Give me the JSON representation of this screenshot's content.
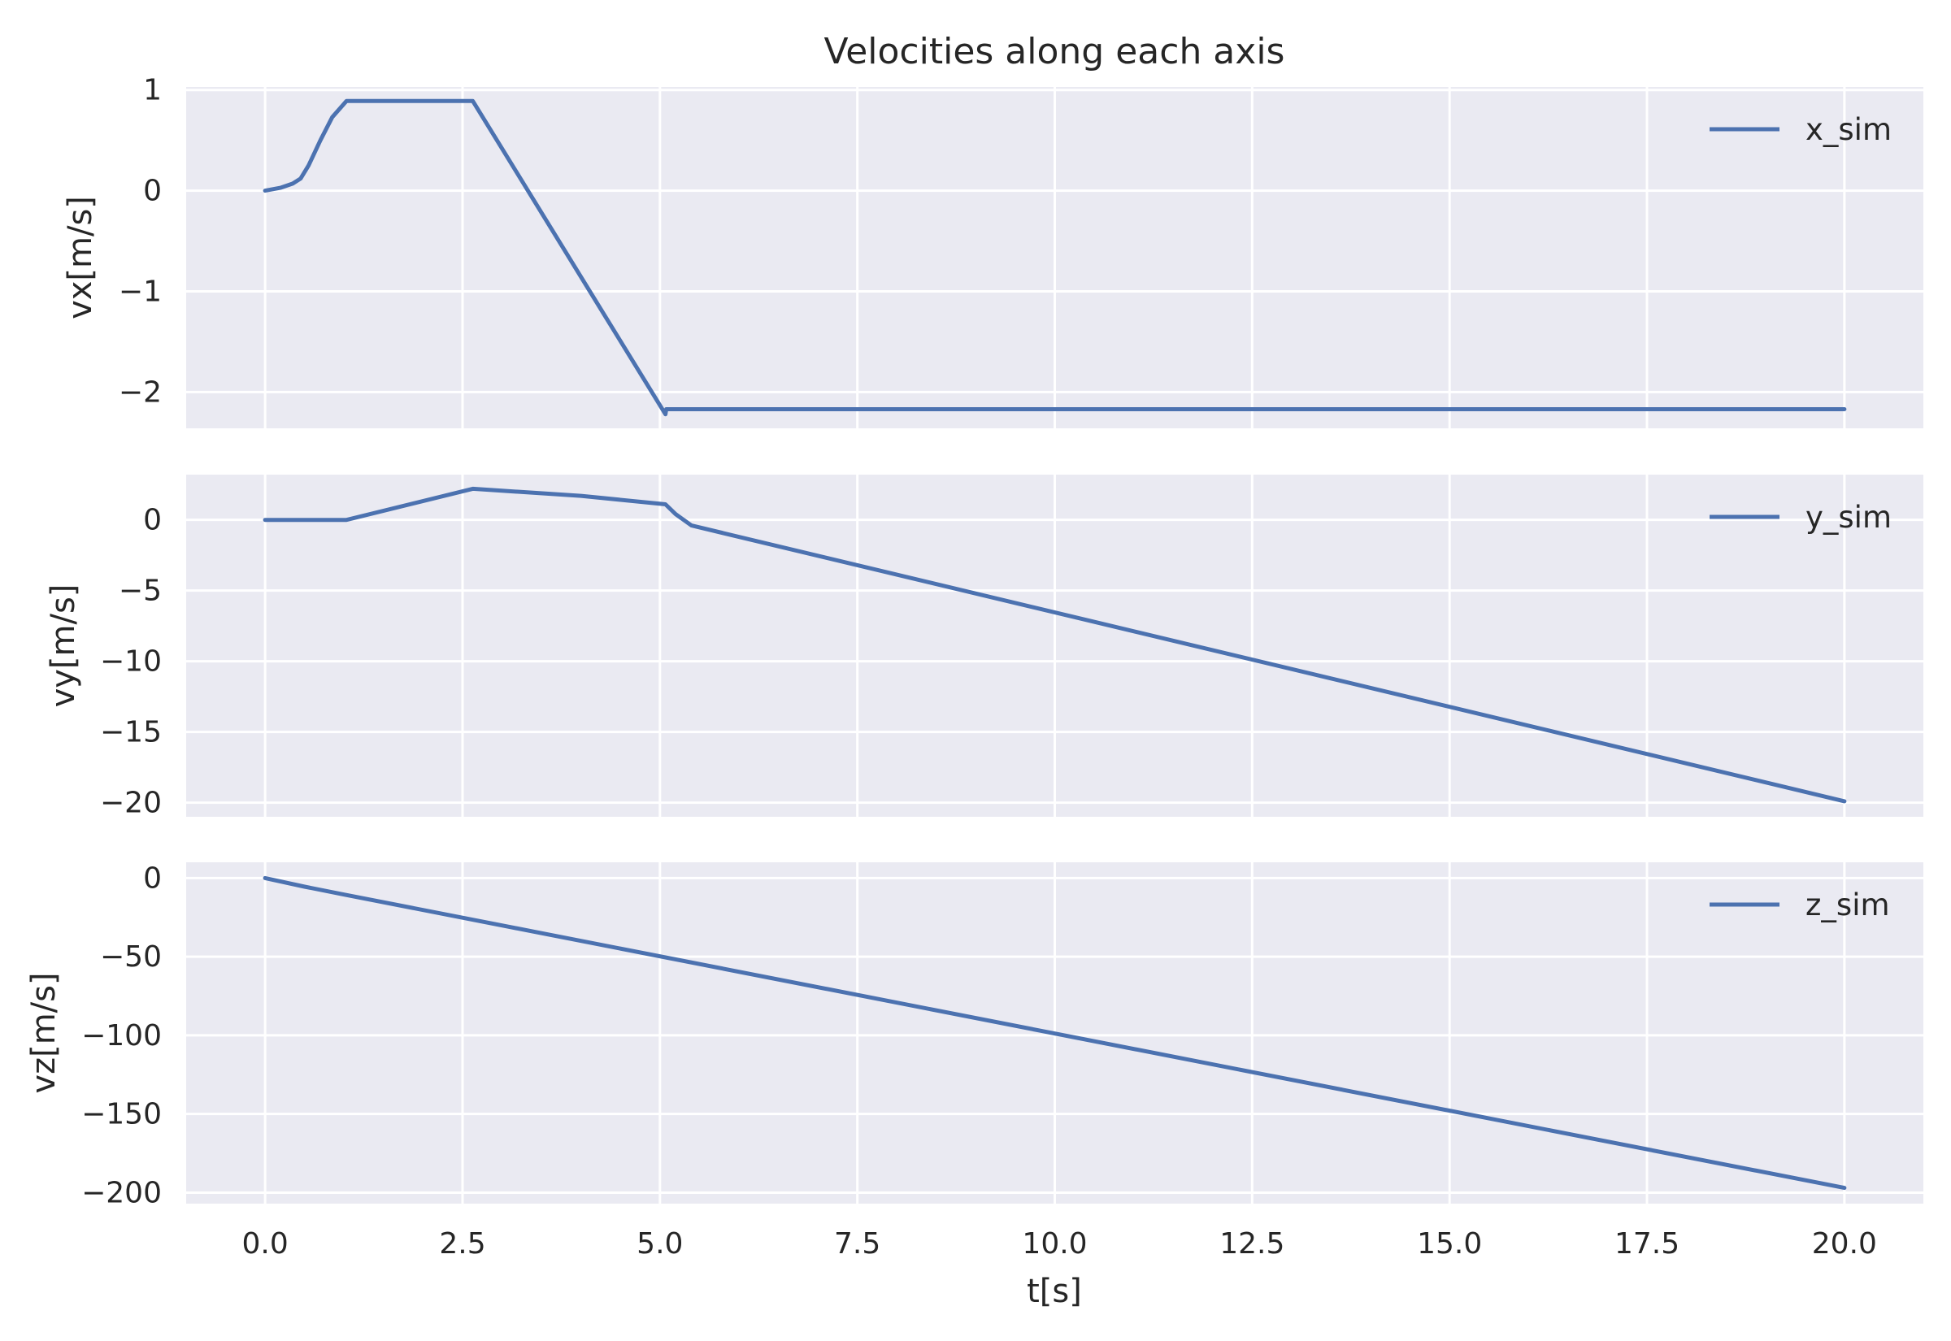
{
  "chart_data": {
    "type": "line",
    "title": "Velocities along each axis",
    "xlabel": "t[s]",
    "xlim": [
      -1.0,
      21.0
    ],
    "xticks": [
      0.0,
      2.5,
      5.0,
      7.5,
      10.0,
      12.5,
      15.0,
      17.5,
      20.0
    ],
    "xtick_labels": [
      "0.0",
      "2.5",
      "5.0",
      "7.5",
      "10.0",
      "12.5",
      "15.0",
      "17.5",
      "20.0"
    ],
    "line_color": "#4c72b0",
    "background_color": "#eaeaf2",
    "grid": true,
    "legend_position": "upper right",
    "subplots": [
      {
        "ylabel": "vx[m/s]",
        "ylim": [
          -2.36,
          1.03
        ],
        "yticks": [
          1,
          0,
          -1,
          -2
        ],
        "ytick_labels": [
          "1",
          "0",
          "−1",
          "−2"
        ],
        "series": [
          {
            "name": "x_sim",
            "x": [
              0.0,
              0.2,
              0.35,
              0.45,
              0.55,
              0.7,
              0.85,
              1.03,
              2.63,
              5.07,
              5.08,
              20.0
            ],
            "y": [
              0.0,
              0.03,
              0.07,
              0.12,
              0.25,
              0.5,
              0.73,
              0.89,
              0.89,
              -2.22,
              -2.17,
              -2.17
            ]
          }
        ]
      },
      {
        "ylabel": "vy[m/s]",
        "ylim": [
          -21.0,
          3.2
        ],
        "yticks": [
          0,
          -5,
          -10,
          -15,
          -20
        ],
        "ytick_labels": [
          "0",
          "−5",
          "−10",
          "−15",
          "−20"
        ],
        "series": [
          {
            "name": "y_sim",
            "x": [
              0.0,
              1.03,
              2.63,
              4.0,
              5.07,
              5.2,
              5.4,
              20.0
            ],
            "y": [
              0.0,
              0.0,
              2.2,
              1.7,
              1.1,
              0.4,
              -0.4,
              -19.9
            ]
          }
        ]
      },
      {
        "ylabel": "vz[m/s]",
        "ylim": [
          -207.0,
          10.0
        ],
        "yticks": [
          0,
          -50,
          -100,
          -150,
          -200
        ],
        "ytick_labels": [
          "0",
          "−50",
          "−100",
          "−150",
          "−200"
        ],
        "series": [
          {
            "name": "z_sim",
            "x": [
              0.0,
              0.5,
              1.0,
              20.0
            ],
            "y": [
              0.0,
              -5.5,
              -10.5,
              -197.0
            ]
          }
        ]
      }
    ]
  }
}
